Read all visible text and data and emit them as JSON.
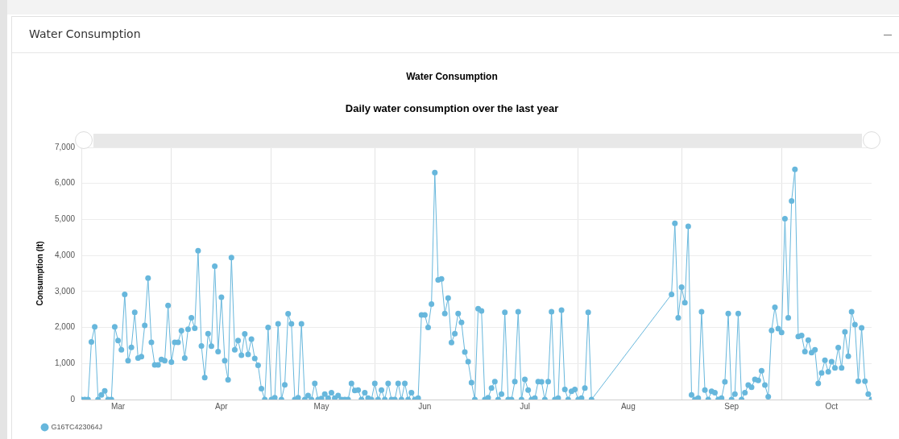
{
  "chart_data": {
    "type": "line",
    "title": "Water Consumption",
    "subtitle": "Daily water consumption over the last year",
    "ylabel": "Consumption (lt)",
    "x": [
      "--03-05",
      "--03-06",
      "--03-07",
      "--03-08",
      "--03-09",
      "--03-10",
      "--03-11",
      "--03-12",
      "--03-13",
      "--03-14",
      "--03-15",
      "--03-16",
      "--03-17",
      "--03-18",
      "--03-19",
      "--03-20",
      "--03-21",
      "--03-22",
      "--03-23",
      "--03-24",
      "--03-25",
      "--03-26",
      "--03-27",
      "--03-28",
      "--03-29",
      "--03-30",
      "--03-31",
      "--04-01",
      "--04-02",
      "--04-03",
      "--04-04",
      "--04-05",
      "--04-06",
      "--04-07",
      "--04-08",
      "--04-09",
      "--04-10",
      "--04-11",
      "--04-12",
      "--04-13",
      "--04-14",
      "--04-15",
      "--04-16",
      "--04-17",
      "--04-18",
      "--04-19",
      "--04-20",
      "--04-21",
      "--04-22",
      "--04-23",
      "--04-24",
      "--04-25",
      "--04-26",
      "--04-27",
      "--04-28",
      "--04-29",
      "--04-30",
      "--05-01",
      "--05-02",
      "--05-03",
      "--05-04",
      "--05-05",
      "--05-06",
      "--05-07",
      "--05-08",
      "--05-09",
      "--05-10",
      "--05-11",
      "--05-12",
      "--05-13",
      "--05-14",
      "--05-15",
      "--05-16",
      "--05-17",
      "--05-18",
      "--05-19",
      "--05-20",
      "--05-21",
      "--05-22",
      "--05-23",
      "--05-24",
      "--05-25",
      "--05-26",
      "--05-27",
      "--05-28",
      "--05-29",
      "--05-30",
      "--05-31",
      "--06-01",
      "--06-02",
      "--06-03",
      "--06-04",
      "--06-05",
      "--06-06",
      "--06-07",
      "--06-08",
      "--06-09",
      "--06-10",
      "--06-11",
      "--06-12",
      "--06-13",
      "--06-14",
      "--06-15",
      "--06-16",
      "--06-17",
      "--06-18",
      "--06-19",
      "--06-20",
      "--06-21",
      "--06-22",
      "--06-23",
      "--06-24",
      "--06-25",
      "--06-26",
      "--06-27",
      "--06-28",
      "--06-29",
      "--06-30",
      "--07-01",
      "--07-02",
      "--07-03",
      "--07-04",
      "--07-05",
      "--07-06",
      "--07-07",
      "--07-08",
      "--07-09",
      "--07-10",
      "--07-11",
      "--07-12",
      "--07-13",
      "--07-14",
      "--07-15",
      "--07-16",
      "--07-17",
      "--07-18",
      "--07-19",
      "--07-20",
      "--07-21",
      "--07-22",
      "--07-23",
      "--07-24",
      "--07-25",
      "--07-26",
      "--07-27",
      "--07-28",
      "--07-29",
      "--07-30",
      "--07-31",
      "--08-01",
      "--08-02",
      "--08-03",
      "--08-04",
      "--08-05",
      "--08-29",
      "--08-30",
      "--08-31",
      "--09-01",
      "--09-02",
      "--09-03",
      "--09-04",
      "--09-05",
      "--09-06",
      "--09-07",
      "--09-08",
      "--09-09",
      "--09-10",
      "--09-11",
      "--09-12",
      "--09-13",
      "--09-14",
      "--09-15",
      "--09-16",
      "--09-17",
      "--09-18",
      "--09-19",
      "--09-20",
      "--09-21",
      "--09-22",
      "--09-23",
      "--09-24",
      "--09-25",
      "--09-26",
      "--09-27",
      "--09-28",
      "--09-29",
      "--09-30",
      "--10-01",
      "--10-02",
      "--10-03",
      "--10-04",
      "--10-05",
      "--10-06",
      "--10-07",
      "--10-08",
      "--10-09",
      "--10-10",
      "--10-11",
      "--10-12",
      "--10-13",
      "--10-14",
      "--10-15",
      "--10-16",
      "--10-17",
      "--10-18",
      "--10-19",
      "--10-20",
      "--10-21",
      "--10-22",
      "--10-23",
      "--10-24",
      "--10-25",
      "--10-26",
      "--10-27",
      "--10-28"
    ],
    "series": [
      {
        "name": "G16TC423064J",
        "color": "#67b7dc",
        "values": [
          0,
          0,
          0,
          1600,
          2020,
          0,
          130,
          240,
          0,
          0,
          2020,
          1640,
          1380,
          2920,
          1080,
          1450,
          2420,
          1150,
          1190,
          2060,
          3370,
          1590,
          960,
          960,
          1110,
          1080,
          2610,
          1040,
          1590,
          1590,
          1910,
          1150,
          1950,
          2270,
          1980,
          4130,
          1490,
          610,
          1830,
          1480,
          3700,
          1330,
          2840,
          1080,
          550,
          3940,
          1380,
          1640,
          1230,
          1820,
          1250,
          1680,
          1140,
          950,
          300,
          0,
          2000,
          0,
          50,
          2100,
          0,
          410,
          2380,
          2100,
          0,
          50,
          2100,
          0,
          110,
          0,
          450,
          0,
          30,
          150,
          40,
          190,
          40,
          110,
          0,
          0,
          0,
          450,
          250,
          260,
          0,
          190,
          40,
          0,
          450,
          0,
          260,
          0,
          450,
          0,
          0,
          450,
          0,
          450,
          0,
          190,
          0,
          40,
          2350,
          2350,
          2000,
          2650,
          6300,
          3320,
          3350,
          2390,
          2820,
          1580,
          1830,
          2390,
          2140,
          1320,
          1050,
          470,
          0,
          2520,
          2460,
          0,
          50,
          320,
          500,
          0,
          150,
          2420,
          0,
          0,
          500,
          2440,
          0,
          560,
          260,
          0,
          40,
          500,
          490,
          0,
          500,
          2440,
          0,
          40,
          2480,
          280,
          0,
          230,
          280,
          0,
          40,
          320,
          2420,
          0,
          2920,
          4890,
          2270,
          3120,
          2690,
          4810,
          130,
          0,
          40,
          2440,
          260,
          0,
          230,
          190,
          0,
          40,
          490,
          2390,
          0,
          150,
          2390,
          0,
          190,
          400,
          340,
          560,
          530,
          800,
          400,
          80,
          1920,
          2560,
          1970,
          1860,
          5020,
          2270,
          5510,
          6390,
          1750,
          1780,
          1330,
          1650,
          1300,
          1380,
          450,
          740,
          1090,
          770,
          1050,
          880,
          1440,
          880,
          1880,
          1200,
          2440,
          2080,
          510,
          1990,
          510,
          150,
          0
        ]
      }
    ],
    "xlim": [
      "--03-05",
      "--10-28"
    ],
    "xticks": [
      {
        "value": "--03-16",
        "label": "Mar"
      },
      {
        "value": "--04-01",
        "label": null
      },
      {
        "value": "--04-16",
        "label": "Apr"
      },
      {
        "value": "--05-01",
        "label": null
      },
      {
        "value": "--05-16",
        "label": "May"
      },
      {
        "value": "--06-01",
        "label": null
      },
      {
        "value": "--06-16",
        "label": "Jun"
      },
      {
        "value": "--07-01",
        "label": null
      },
      {
        "value": "--07-16",
        "label": "Jul"
      },
      {
        "value": "--08-01",
        "label": null
      },
      {
        "value": "--08-16",
        "label": "Aug"
      },
      {
        "value": "--09-01",
        "label": null
      },
      {
        "value": "--09-16",
        "label": "Sep"
      },
      {
        "value": "--10-01",
        "label": null
      },
      {
        "value": "--10-16",
        "label": "Oct"
      }
    ],
    "ylim": [
      0,
      7000
    ],
    "yticks": [
      0,
      {
        "value": 1000,
        "label": "1,000"
      },
      {
        "value": 2000,
        "label": "2,000"
      },
      {
        "value": 3000,
        "label": "3,000"
      },
      {
        "value": 4000,
        "label": "4,000"
      },
      {
        "value": 5000,
        "label": "5,000"
      },
      {
        "value": 6000,
        "label": "6,000"
      },
      {
        "value": 7000,
        "label": "7,000"
      }
    ],
    "grid": true,
    "legend": "bottom left",
    "marker": "circle",
    "line_style": "solid"
  }
}
